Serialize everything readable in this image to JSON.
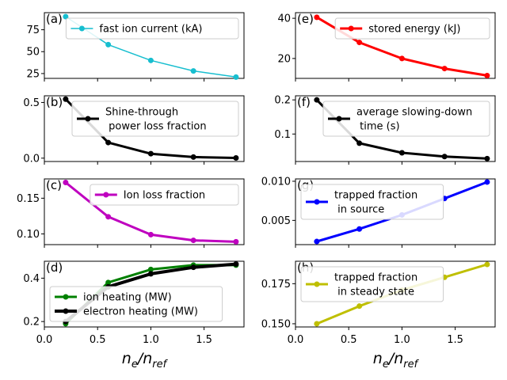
{
  "figure": {
    "xlabel": "n_e/n_ref",
    "xticks": [
      0.0,
      0.5,
      1.0,
      1.5
    ],
    "xlim": [
      0.0,
      1.875
    ]
  },
  "chart_data": [
    {
      "type": "line",
      "panel": "(a)",
      "legend": [
        "fast ion current (kA)"
      ],
      "legend_position": "upper right",
      "series": [
        {
          "name": "fast ion current (kA)",
          "color": "#17becf",
          "linewidth": 1.5,
          "x": [
            0.2,
            0.6,
            1.0,
            1.4,
            1.8
          ],
          "y": [
            90,
            58,
            40,
            28,
            21
          ]
        }
      ],
      "ylim": [
        19.5,
        94.5
      ],
      "yticks": [
        25,
        50,
        75
      ]
    },
    {
      "type": "line",
      "panel": "(e)",
      "legend": [
        "stored energy (kJ)"
      ],
      "legend_position": "upper right",
      "series": [
        {
          "name": "stored energy (kJ)",
          "color": "#ff0000",
          "linewidth": 3,
          "x": [
            0.2,
            0.6,
            1.0,
            1.4,
            1.8
          ],
          "y": [
            40.5,
            28,
            20,
            15,
            11.5
          ]
        }
      ],
      "ylim": [
        10.1,
        42.8
      ],
      "yticks": [
        20,
        40
      ]
    },
    {
      "type": "line",
      "panel": "(b)",
      "legend": [
        "Shine-through",
        " power loss fraction"
      ],
      "legend_position": "upper right",
      "series": [
        {
          "name": "Shine-through power loss fraction",
          "color": "#000000",
          "linewidth": 3,
          "x": [
            0.2,
            0.6,
            1.0,
            1.4,
            1.8
          ],
          "y": [
            0.53,
            0.14,
            0.04,
            0.01,
            0.002
          ]
        }
      ],
      "ylim": [
        -0.03,
        0.56
      ],
      "yticks": [
        0.0,
        0.5
      ],
      "ytick_labels": [
        "0.0",
        "0.5"
      ]
    },
    {
      "type": "line",
      "panel": "(f)",
      "legend": [
        "average slowing-down",
        " time (s)"
      ],
      "legend_position": "upper right",
      "series": [
        {
          "name": "average slowing-down time (s)",
          "color": "#000000",
          "linewidth": 3,
          "x": [
            0.2,
            0.6,
            1.0,
            1.4,
            1.8
          ],
          "y": [
            0.2,
            0.073,
            0.045,
            0.034,
            0.028
          ]
        }
      ],
      "ylim": [
        0.0195,
        0.212
      ],
      "yticks": [
        0.1,
        0.2
      ]
    },
    {
      "type": "line",
      "panel": "(c)",
      "legend": [
        "Ion loss fraction"
      ],
      "legend_position": "upper right",
      "series": [
        {
          "name": "Ion loss fraction",
          "color": "#bf00bf",
          "linewidth": 3,
          "x": [
            0.2,
            0.6,
            1.0,
            1.4,
            1.8
          ],
          "y": [
            0.172,
            0.124,
            0.099,
            0.091,
            0.089
          ]
        }
      ],
      "ylim": [
        0.085,
        0.177
      ],
      "yticks": [
        0.1,
        0.15
      ],
      "ytick_labels": [
        "0.10",
        "0.15"
      ]
    },
    {
      "type": "line",
      "panel": "(g)",
      "legend": [
        "trapped fraction",
        " in source"
      ],
      "legend_position": "upper left",
      "series": [
        {
          "name": "trapped fraction in source",
          "color": "#0000ff",
          "linewidth": 3,
          "x": [
            0.2,
            0.6,
            1.0,
            1.4,
            1.8
          ],
          "y": [
            0.0023,
            0.0039,
            0.0057,
            0.0078,
            0.0099
          ]
        }
      ],
      "ylim": [
        0.0019,
        0.0103
      ],
      "yticks": [
        0.005,
        0.01
      ],
      "ytick_labels": [
        "0.005",
        "0.010"
      ]
    },
    {
      "type": "line",
      "panel": "(d)",
      "legend": [
        "ion heating (MW)",
        "electron heating (MW)"
      ],
      "legend_position": "lower left",
      "series": [
        {
          "name": "ion heating (MW)",
          "color": "#008000",
          "linewidth": 3,
          "x": [
            0.2,
            0.6,
            1.0,
            1.4,
            1.8
          ],
          "y": [
            0.19,
            0.38,
            0.44,
            0.46,
            0.46
          ]
        },
        {
          "name": "electron heating (MW)",
          "color": "#000000",
          "linewidth": 4,
          "x": [
            0.2,
            0.6,
            1.0,
            1.4,
            1.8
          ],
          "y": [
            0.2,
            0.36,
            0.42,
            0.45,
            0.465
          ]
        }
      ],
      "ylim": [
        0.175,
        0.478
      ],
      "yticks": [
        0.2,
        0.4
      ],
      "ytick_labels": [
        "0.2",
        "0.4"
      ]
    },
    {
      "type": "line",
      "panel": "(h)",
      "legend": [
        "trapped fraction",
        " in steady state"
      ],
      "legend_position": "upper left",
      "series": [
        {
          "name": "trapped fraction in steady state",
          "color": "#bfbf00",
          "linewidth": 3,
          "x": [
            0.2,
            0.6,
            1.0,
            1.4,
            1.8
          ],
          "y": [
            0.15,
            0.161,
            0.171,
            0.179,
            0.187
          ]
        }
      ],
      "ylim": [
        0.148,
        0.189
      ],
      "yticks": [
        0.15,
        0.175
      ],
      "ytick_labels": [
        "0.150",
        "0.175"
      ]
    }
  ]
}
